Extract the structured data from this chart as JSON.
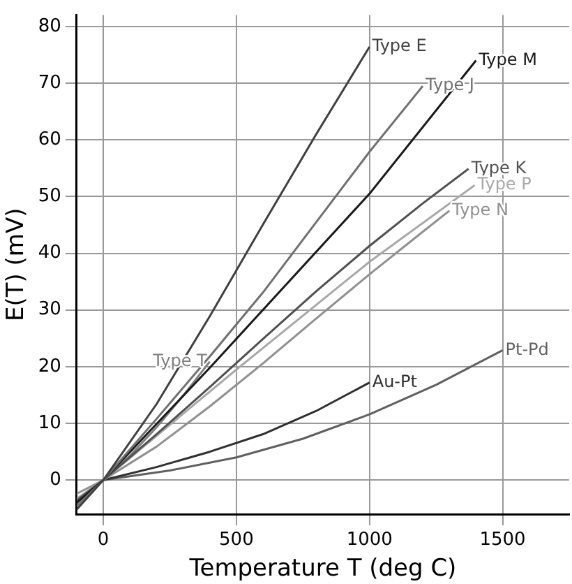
{
  "chart_data": {
    "type": "line",
    "xlabel": "Temperature T (deg C)",
    "ylabel": "E(T) (mV)",
    "xlim": [
      -100,
      1750
    ],
    "ylim": [
      -6,
      82
    ],
    "xticks": [
      0,
      500,
      1000,
      1500
    ],
    "yticks": [
      0,
      10,
      20,
      30,
      40,
      50,
      60,
      70,
      80
    ],
    "grid": true,
    "legend": false,
    "marker": "none",
    "line_style": "solid",
    "series": [
      {
        "name": "Type E",
        "color": "#404040",
        "x": [
          -100,
          0,
          200,
          400,
          600,
          800,
          1000
        ],
        "values": [
          -5.2,
          0,
          13.4,
          28.9,
          45.1,
          61.0,
          76.4
        ]
      },
      {
        "name": "Type J",
        "color": "#707070",
        "x": [
          -100,
          0,
          200,
          400,
          600,
          800,
          1000,
          1200
        ],
        "values": [
          -4.6,
          0,
          10.8,
          21.8,
          33.1,
          45.5,
          57.9,
          69.5
        ]
      },
      {
        "name": "Type M",
        "color": "#1a1a1a",
        "x": [
          -100,
          0,
          400,
          1000,
          1400
        ],
        "values": [
          -4.0,
          0,
          19.8,
          50.5,
          74
        ]
      },
      {
        "name": "Type K",
        "color": "#505050",
        "x": [
          -100,
          0,
          200,
          400,
          600,
          800,
          1000,
          1200,
          1372
        ],
        "values": [
          -3.6,
          0,
          8.1,
          16.4,
          24.9,
          33.3,
          41.3,
          48.8,
          54.9
        ]
      },
      {
        "name": "Type P",
        "color": "#a8a8a8",
        "x": [
          -100,
          0,
          500,
          1000,
          1395
        ],
        "values": [
          -3.3,
          0,
          19.5,
          38.5,
          52
        ]
      },
      {
        "name": "Type N",
        "color": "#909090",
        "x": [
          -100,
          0,
          200,
          400,
          600,
          800,
          1000,
          1200,
          1300
        ],
        "values": [
          -2.4,
          0,
          5.9,
          13.0,
          20.6,
          28.5,
          36.3,
          43.8,
          47.5
        ]
      },
      {
        "name": "Type T",
        "color": "#808080",
        "x": [
          -100,
          0,
          100,
          200,
          300,
          400
        ],
        "values": [
          -3.4,
          0,
          4.3,
          9.3,
          14.9,
          20.9
        ]
      },
      {
        "name": "Au-Pt",
        "color": "#303030",
        "x": [
          0,
          200,
          400,
          600,
          800,
          1000
        ],
        "values": [
          0,
          2.3,
          5.0,
          8.1,
          12.2,
          17.2
        ]
      },
      {
        "name": "Pt-Pd",
        "color": "#606060",
        "x": [
          0,
          250,
          500,
          750,
          1000,
          1250,
          1500
        ],
        "values": [
          0,
          1.7,
          4.0,
          7.3,
          11.6,
          16.8,
          22.9
        ]
      }
    ]
  }
}
